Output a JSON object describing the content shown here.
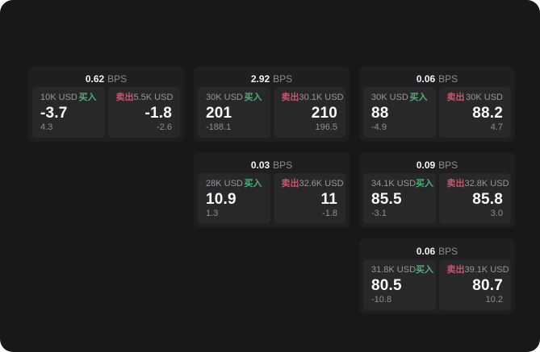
{
  "labels": {
    "bps_unit": "BPS",
    "buy": "买入",
    "sell": "卖出"
  },
  "colors": {
    "window_background": "#18181a",
    "card_background": "#1f1f22",
    "panel_background": "#28282b",
    "buy_green": "#4db273",
    "sell_red": "#c5566b",
    "primary_text": "#fafafa",
    "muted_text": "#97979c"
  },
  "cards": [
    {
      "bps_value": "0.62",
      "buy": {
        "size": "10K USD",
        "price": "-3.7",
        "delta": "4.3"
      },
      "sell": {
        "size": "5.5K USD",
        "price": "-1.8",
        "delta": "-2.6"
      }
    },
    {
      "bps_value": "2.92",
      "buy": {
        "size": "30K USD",
        "price": "201",
        "delta": "-188.1"
      },
      "sell": {
        "size": "30.1K USD",
        "price": "210",
        "delta": "196.5"
      }
    },
    {
      "bps_value": "0.06",
      "buy": {
        "size": "30K USD",
        "price": "88",
        "delta": "-4.9"
      },
      "sell": {
        "size": "30K USD",
        "price": "88.2",
        "delta": "4.7"
      }
    },
    {
      "bps_value": "0.03",
      "buy": {
        "size": "28K USD",
        "price": "10.9",
        "delta": "1.3"
      },
      "sell": {
        "size": "32.6K USD",
        "price": "11",
        "delta": "-1.8"
      }
    },
    {
      "bps_value": "0.09",
      "buy": {
        "size": "34.1K USD",
        "price": "85.5",
        "delta": "-3.1"
      },
      "sell": {
        "size": "32.8K USD",
        "price": "85.8",
        "delta": "3.0"
      }
    },
    {
      "bps_value": "0.06",
      "buy": {
        "size": "31.8K USD",
        "price": "80.5",
        "delta": "-10.8"
      },
      "sell": {
        "size": "39.1K USD",
        "price": "80.7",
        "delta": "10.2"
      }
    }
  ]
}
